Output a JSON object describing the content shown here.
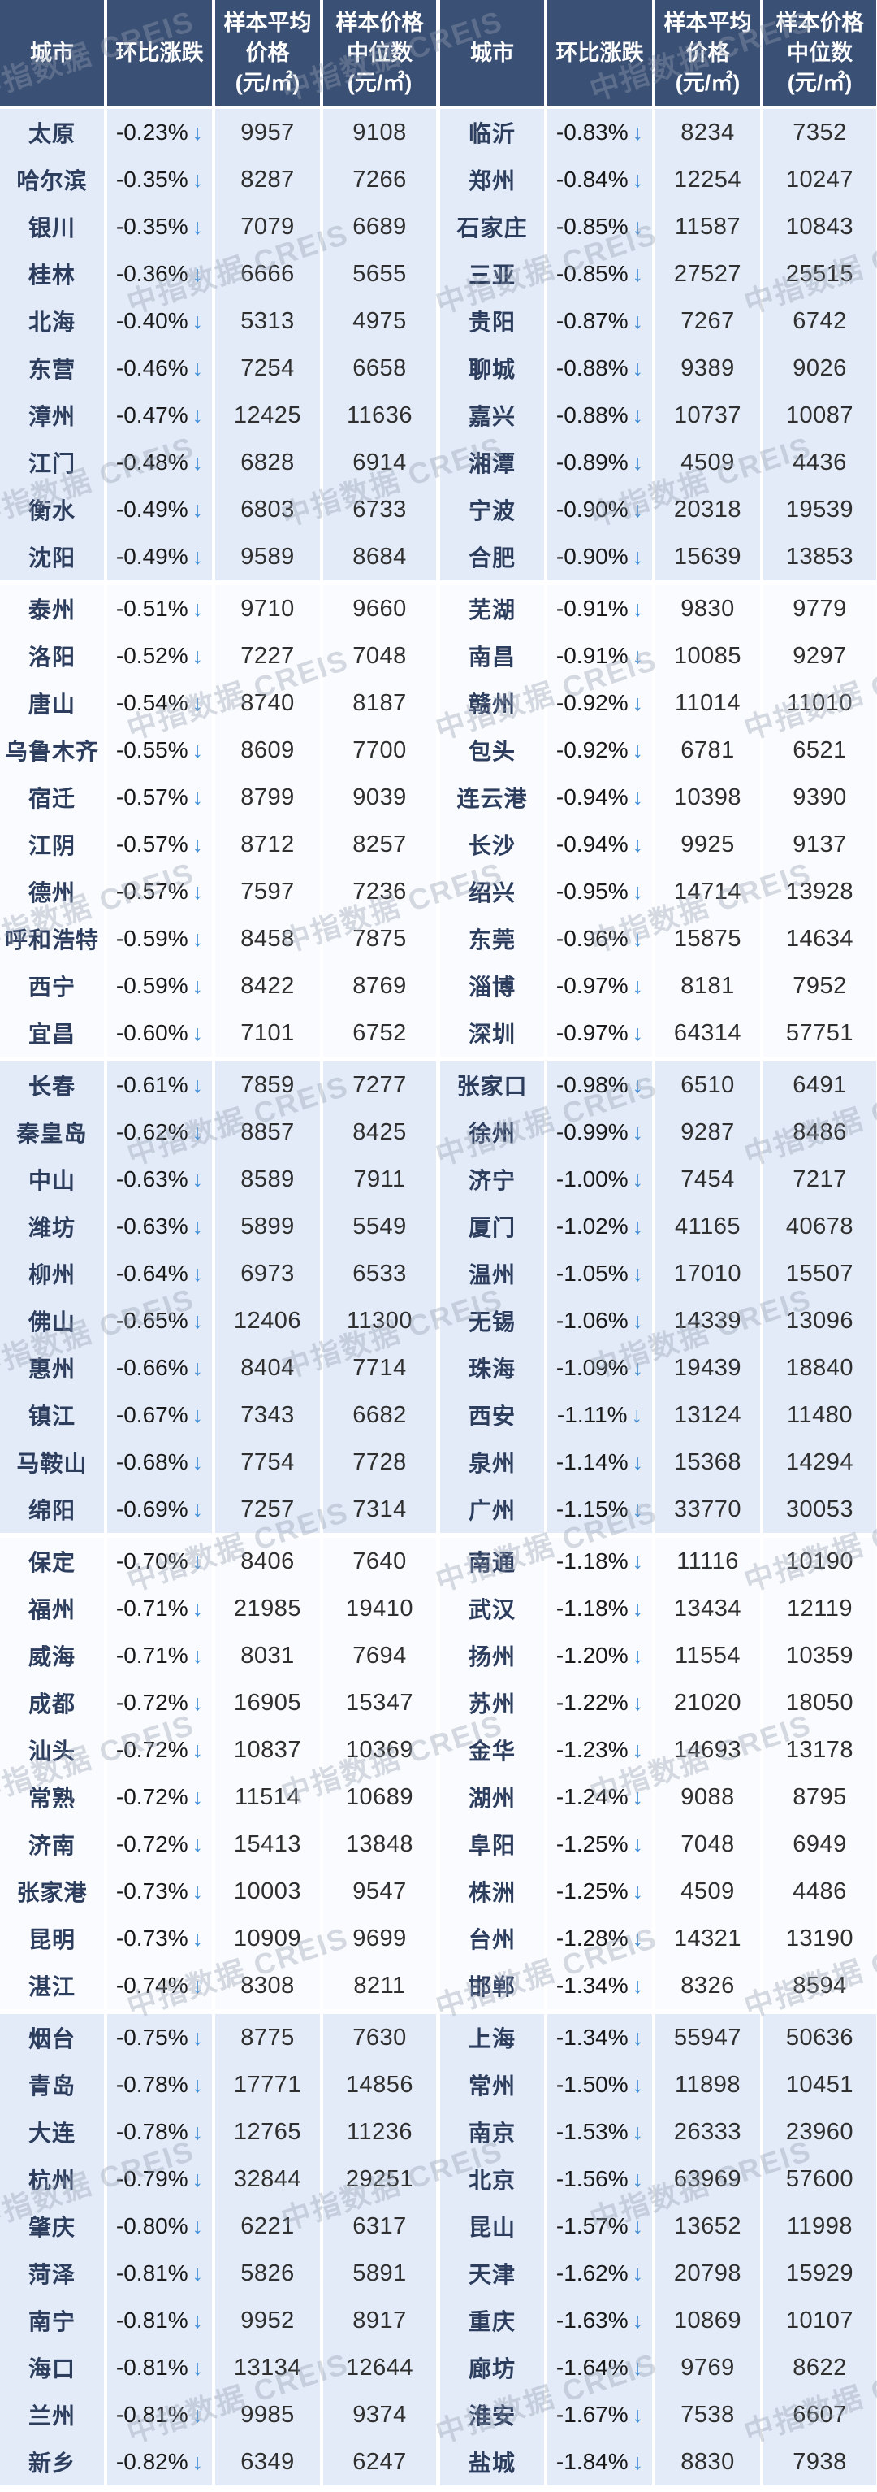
{
  "watermark": {
    "text": "中指数据  CREIS"
  },
  "colors": {
    "header_bg": "#3a5075",
    "block_blue": "#e2ebf7",
    "block_white": "#f9fbfe",
    "city_text": "#2c3d5e",
    "value_text": "#2f2f2f",
    "pct_text": "#191919",
    "arrow_blue": "#3f8ed8"
  },
  "table": {
    "arrow": "↓",
    "headers": [
      {
        "key": "city",
        "title": "城市",
        "unit": ""
      },
      {
        "key": "mom_change",
        "title": "环比涨跌",
        "unit": ""
      },
      {
        "key": "avg_price",
        "title": "样本平均\n价格",
        "unit": "(元/㎡)"
      },
      {
        "key": "median_price",
        "title": "样本价格\n中位数",
        "unit": "(元/㎡)"
      }
    ],
    "rows_per_block": 10,
    "left_rows": [
      {
        "city": "太原",
        "change": "-0.23%",
        "avg": "9957",
        "median": "9108"
      },
      {
        "city": "哈尔滨",
        "change": "-0.35%",
        "avg": "8287",
        "median": "7266"
      },
      {
        "city": "银川",
        "change": "-0.35%",
        "avg": "7079",
        "median": "6689"
      },
      {
        "city": "桂林",
        "change": "-0.36%",
        "avg": "6666",
        "median": "5655"
      },
      {
        "city": "北海",
        "change": "-0.40%",
        "avg": "5313",
        "median": "4975"
      },
      {
        "city": "东营",
        "change": "-0.46%",
        "avg": "7254",
        "median": "6658"
      },
      {
        "city": "漳州",
        "change": "-0.47%",
        "avg": "12425",
        "median": "11636"
      },
      {
        "city": "江门",
        "change": "-0.48%",
        "avg": "6828",
        "median": "6914"
      },
      {
        "city": "衡水",
        "change": "-0.49%",
        "avg": "6803",
        "median": "6733"
      },
      {
        "city": "沈阳",
        "change": "-0.49%",
        "avg": "9589",
        "median": "8684"
      },
      {
        "city": "泰州",
        "change": "-0.51%",
        "avg": "9710",
        "median": "9660"
      },
      {
        "city": "洛阳",
        "change": "-0.52%",
        "avg": "7227",
        "median": "7048"
      },
      {
        "city": "唐山",
        "change": "-0.54%",
        "avg": "8740",
        "median": "8187"
      },
      {
        "city": "乌鲁木齐",
        "change": "-0.55%",
        "avg": "8609",
        "median": "7700"
      },
      {
        "city": "宿迁",
        "change": "-0.57%",
        "avg": "8799",
        "median": "9039"
      },
      {
        "city": "江阴",
        "change": "-0.57%",
        "avg": "8712",
        "median": "8257"
      },
      {
        "city": "德州",
        "change": "-0.57%",
        "avg": "7597",
        "median": "7236"
      },
      {
        "city": "呼和浩特",
        "change": "-0.59%",
        "avg": "8458",
        "median": "7875"
      },
      {
        "city": "西宁",
        "change": "-0.59%",
        "avg": "8422",
        "median": "8769"
      },
      {
        "city": "宜昌",
        "change": "-0.60%",
        "avg": "7101",
        "median": "6752"
      },
      {
        "city": "长春",
        "change": "-0.61%",
        "avg": "7859",
        "median": "7277"
      },
      {
        "city": "秦皇岛",
        "change": "-0.62%",
        "avg": "8857",
        "median": "8425"
      },
      {
        "city": "中山",
        "change": "-0.63%",
        "avg": "8589",
        "median": "7911"
      },
      {
        "city": "潍坊",
        "change": "-0.63%",
        "avg": "5899",
        "median": "5549"
      },
      {
        "city": "柳州",
        "change": "-0.64%",
        "avg": "6973",
        "median": "6533"
      },
      {
        "city": "佛山",
        "change": "-0.65%",
        "avg": "12406",
        "median": "11300"
      },
      {
        "city": "惠州",
        "change": "-0.66%",
        "avg": "8404",
        "median": "7714"
      },
      {
        "city": "镇江",
        "change": "-0.67%",
        "avg": "7343",
        "median": "6682"
      },
      {
        "city": "马鞍山",
        "change": "-0.68%",
        "avg": "7754",
        "median": "7728"
      },
      {
        "city": "绵阳",
        "change": "-0.69%",
        "avg": "7257",
        "median": "7314"
      },
      {
        "city": "保定",
        "change": "-0.70%",
        "avg": "8406",
        "median": "7640"
      },
      {
        "city": "福州",
        "change": "-0.71%",
        "avg": "21985",
        "median": "19410"
      },
      {
        "city": "威海",
        "change": "-0.71%",
        "avg": "8031",
        "median": "7694"
      },
      {
        "city": "成都",
        "change": "-0.72%",
        "avg": "16905",
        "median": "15347"
      },
      {
        "city": "汕头",
        "change": "-0.72%",
        "avg": "10837",
        "median": "10369"
      },
      {
        "city": "常熟",
        "change": "-0.72%",
        "avg": "11514",
        "median": "10689"
      },
      {
        "city": "济南",
        "change": "-0.72%",
        "avg": "15413",
        "median": "13848"
      },
      {
        "city": "张家港",
        "change": "-0.73%",
        "avg": "10003",
        "median": "9547"
      },
      {
        "city": "昆明",
        "change": "-0.73%",
        "avg": "10909",
        "median": "9699"
      },
      {
        "city": "湛江",
        "change": "-0.74%",
        "avg": "8308",
        "median": "8211"
      },
      {
        "city": "烟台",
        "change": "-0.75%",
        "avg": "8775",
        "median": "7630"
      },
      {
        "city": "青岛",
        "change": "-0.78%",
        "avg": "17771",
        "median": "14856"
      },
      {
        "city": "大连",
        "change": "-0.78%",
        "avg": "12765",
        "median": "11236"
      },
      {
        "city": "杭州",
        "change": "-0.79%",
        "avg": "32844",
        "median": "29251"
      },
      {
        "city": "肇庆",
        "change": "-0.80%",
        "avg": "6221",
        "median": "6317"
      },
      {
        "city": "菏泽",
        "change": "-0.81%",
        "avg": "5826",
        "median": "5891"
      },
      {
        "city": "南宁",
        "change": "-0.81%",
        "avg": "9952",
        "median": "8917"
      },
      {
        "city": "海口",
        "change": "-0.81%",
        "avg": "13134",
        "median": "12644"
      },
      {
        "city": "兰州",
        "change": "-0.81%",
        "avg": "9985",
        "median": "9374"
      },
      {
        "city": "新乡",
        "change": "-0.82%",
        "avg": "6349",
        "median": "6247"
      }
    ],
    "right_rows": [
      {
        "city": "临沂",
        "change": "-0.83%",
        "avg": "8234",
        "median": "7352"
      },
      {
        "city": "郑州",
        "change": "-0.84%",
        "avg": "12254",
        "median": "10247"
      },
      {
        "city": "石家庄",
        "change": "-0.85%",
        "avg": "11587",
        "median": "10843"
      },
      {
        "city": "三亚",
        "change": "-0.85%",
        "avg": "27527",
        "median": "25515"
      },
      {
        "city": "贵阳",
        "change": "-0.87%",
        "avg": "7267",
        "median": "6742"
      },
      {
        "city": "聊城",
        "change": "-0.88%",
        "avg": "9389",
        "median": "9026"
      },
      {
        "city": "嘉兴",
        "change": "-0.88%",
        "avg": "10737",
        "median": "10087"
      },
      {
        "city": "湘潭",
        "change": "-0.89%",
        "avg": "4509",
        "median": "4436"
      },
      {
        "city": "宁波",
        "change": "-0.90%",
        "avg": "20318",
        "median": "19539"
      },
      {
        "city": "合肥",
        "change": "-0.90%",
        "avg": "15639",
        "median": "13853"
      },
      {
        "city": "芜湖",
        "change": "-0.91%",
        "avg": "9830",
        "median": "9779"
      },
      {
        "city": "南昌",
        "change": "-0.91%",
        "avg": "10085",
        "median": "9297"
      },
      {
        "city": "赣州",
        "change": "-0.92%",
        "avg": "11014",
        "median": "11010"
      },
      {
        "city": "包头",
        "change": "-0.92%",
        "avg": "6781",
        "median": "6521"
      },
      {
        "city": "连云港",
        "change": "-0.94%",
        "avg": "10398",
        "median": "9390"
      },
      {
        "city": "长沙",
        "change": "-0.94%",
        "avg": "9925",
        "median": "9137"
      },
      {
        "city": "绍兴",
        "change": "-0.95%",
        "avg": "14714",
        "median": "13928"
      },
      {
        "city": "东莞",
        "change": "-0.96%",
        "avg": "15875",
        "median": "14634"
      },
      {
        "city": "淄博",
        "change": "-0.97%",
        "avg": "8181",
        "median": "7952"
      },
      {
        "city": "深圳",
        "change": "-0.97%",
        "avg": "64314",
        "median": "57751"
      },
      {
        "city": "张家口",
        "change": "-0.98%",
        "avg": "6510",
        "median": "6491"
      },
      {
        "city": "徐州",
        "change": "-0.99%",
        "avg": "9287",
        "median": "8486"
      },
      {
        "city": "济宁",
        "change": "-1.00%",
        "avg": "7454",
        "median": "7217"
      },
      {
        "city": "厦门",
        "change": "-1.02%",
        "avg": "41165",
        "median": "40678"
      },
      {
        "city": "温州",
        "change": "-1.05%",
        "avg": "17010",
        "median": "15507"
      },
      {
        "city": "无锡",
        "change": "-1.06%",
        "avg": "14339",
        "median": "13096"
      },
      {
        "city": "珠海",
        "change": "-1.09%",
        "avg": "19439",
        "median": "18840"
      },
      {
        "city": "西安",
        "change": "-1.11%",
        "avg": "13124",
        "median": "11480"
      },
      {
        "city": "泉州",
        "change": "-1.14%",
        "avg": "15368",
        "median": "14294"
      },
      {
        "city": "广州",
        "change": "-1.15%",
        "avg": "33770",
        "median": "30053"
      },
      {
        "city": "南通",
        "change": "-1.18%",
        "avg": "11116",
        "median": "10190"
      },
      {
        "city": "武汉",
        "change": "-1.18%",
        "avg": "13434",
        "median": "12119"
      },
      {
        "city": "扬州",
        "change": "-1.20%",
        "avg": "11554",
        "median": "10359"
      },
      {
        "city": "苏州",
        "change": "-1.22%",
        "avg": "21020",
        "median": "18050"
      },
      {
        "city": "金华",
        "change": "-1.23%",
        "avg": "14693",
        "median": "13178"
      },
      {
        "city": "湖州",
        "change": "-1.24%",
        "avg": "9088",
        "median": "8795"
      },
      {
        "city": "阜阳",
        "change": "-1.25%",
        "avg": "7048",
        "median": "6949"
      },
      {
        "city": "株洲",
        "change": "-1.25%",
        "avg": "4509",
        "median": "4486"
      },
      {
        "city": "台州",
        "change": "-1.28%",
        "avg": "14321",
        "median": "13190"
      },
      {
        "city": "邯郸",
        "change": "-1.34%",
        "avg": "8326",
        "median": "8594"
      },
      {
        "city": "上海",
        "change": "-1.34%",
        "avg": "55947",
        "median": "50636"
      },
      {
        "city": "常州",
        "change": "-1.50%",
        "avg": "11898",
        "median": "10451"
      },
      {
        "city": "南京",
        "change": "-1.53%",
        "avg": "26333",
        "median": "23960"
      },
      {
        "city": "北京",
        "change": "-1.56%",
        "avg": "63969",
        "median": "57600"
      },
      {
        "city": "昆山",
        "change": "-1.57%",
        "avg": "13652",
        "median": "11998"
      },
      {
        "city": "天津",
        "change": "-1.62%",
        "avg": "20798",
        "median": "15929"
      },
      {
        "city": "重庆",
        "change": "-1.63%",
        "avg": "10869",
        "median": "10107"
      },
      {
        "city": "廊坊",
        "change": "-1.64%",
        "avg": "9769",
        "median": "8622"
      },
      {
        "city": "淮安",
        "change": "-1.67%",
        "avg": "7538",
        "median": "6607"
      },
      {
        "city": "盐城",
        "change": "-1.84%",
        "avg": "8830",
        "median": "7938"
      }
    ]
  }
}
